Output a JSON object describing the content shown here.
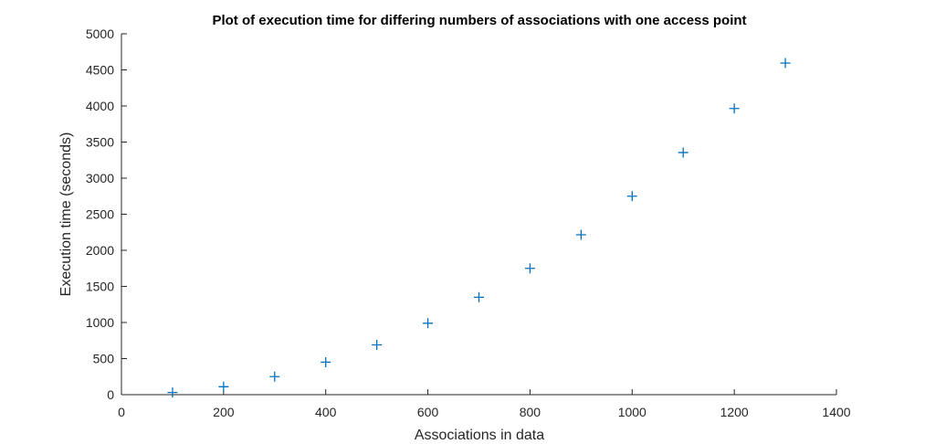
{
  "chart_data": {
    "type": "scatter",
    "title": "Plot of execution time for differing numbers of associations with one access point",
    "xlabel": "Associations in data",
    "ylabel": "Execution time (seconds)",
    "xlim": [
      0,
      1400
    ],
    "ylim": [
      0,
      5000
    ],
    "xticks": [
      0,
      200,
      400,
      600,
      800,
      1000,
      1200,
      1400
    ],
    "yticks": [
      0,
      500,
      1000,
      1500,
      2000,
      2500,
      3000,
      3500,
      4000,
      4500,
      5000
    ],
    "grid": false,
    "marker": "plus",
    "color": "#0072BD",
    "series": [
      {
        "x": [
          100,
          200,
          300,
          400,
          500,
          600,
          700,
          800,
          900,
          1000,
          1100,
          1200,
          1300
        ],
        "y": [
          30,
          110,
          250,
          450,
          690,
          990,
          1350,
          1750,
          2215,
          2750,
          3355,
          3965,
          4595
        ]
      }
    ]
  }
}
